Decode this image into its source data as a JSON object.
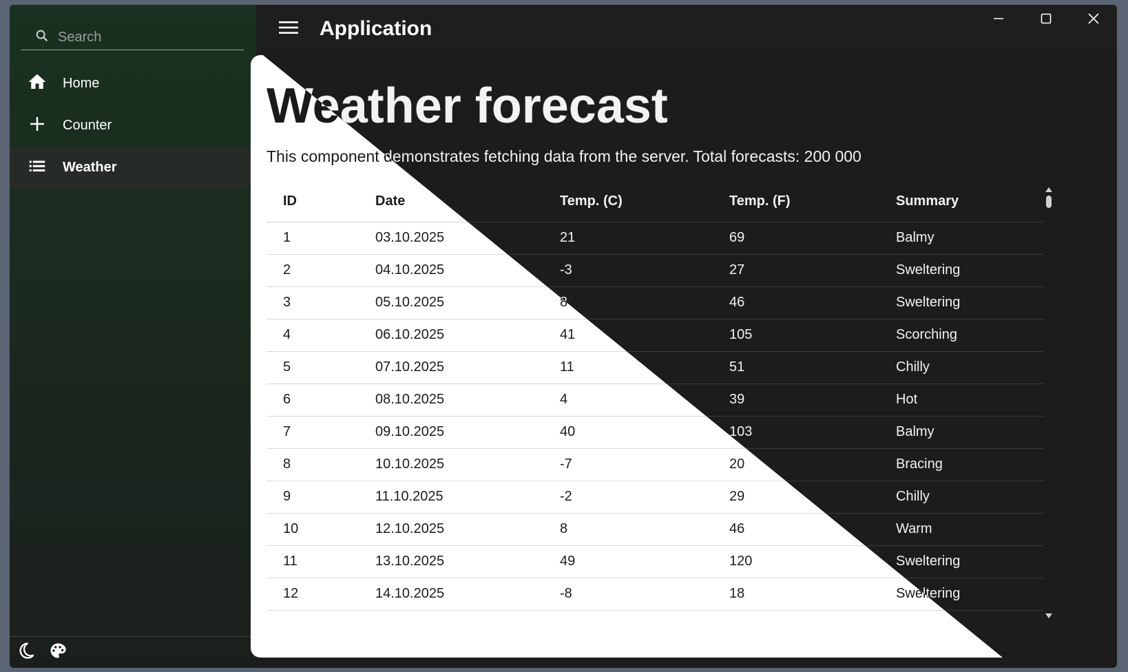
{
  "app": {
    "title": "Application"
  },
  "search": {
    "placeholder": "Search"
  },
  "nav": {
    "items": [
      {
        "label": "Home",
        "icon": "home-icon",
        "active": false
      },
      {
        "label": "Counter",
        "icon": "plus-icon",
        "active": false
      },
      {
        "label": "Weather",
        "icon": "list-icon",
        "active": true
      }
    ]
  },
  "page": {
    "title": "Weather forecast",
    "description": "This component demonstrates fetching data from the server. Total forecasts: 200 000"
  },
  "table": {
    "headers": [
      "ID",
      "Date",
      "Temp. (C)",
      "Temp. (F)",
      "Summary"
    ],
    "rows": [
      [
        "1",
        "03.10.2025",
        "21",
        "69",
        "Balmy"
      ],
      [
        "2",
        "04.10.2025",
        "-3",
        "27",
        "Sweltering"
      ],
      [
        "3",
        "05.10.2025",
        "8",
        "46",
        "Sweltering"
      ],
      [
        "4",
        "06.10.2025",
        "41",
        "105",
        "Scorching"
      ],
      [
        "5",
        "07.10.2025",
        "11",
        "51",
        "Chilly"
      ],
      [
        "6",
        "08.10.2025",
        "4",
        "39",
        "Hot"
      ],
      [
        "7",
        "09.10.2025",
        "40",
        "103",
        "Balmy"
      ],
      [
        "8",
        "10.10.2025",
        "-7",
        "20",
        "Bracing"
      ],
      [
        "9",
        "11.10.2025",
        "-2",
        "29",
        "Chilly"
      ],
      [
        "10",
        "12.10.2025",
        "8",
        "46",
        "Warm"
      ],
      [
        "11",
        "13.10.2025",
        "49",
        "120",
        "Sweltering"
      ],
      [
        "12",
        "14.10.2025",
        "-8",
        "18",
        "Sweltering"
      ]
    ]
  },
  "footer": {
    "icons": [
      "moon-icon",
      "palette-icon"
    ]
  },
  "colors": {
    "sidebar": "#193121",
    "background": "#1c1c1c",
    "content_light": "#ffffff"
  }
}
